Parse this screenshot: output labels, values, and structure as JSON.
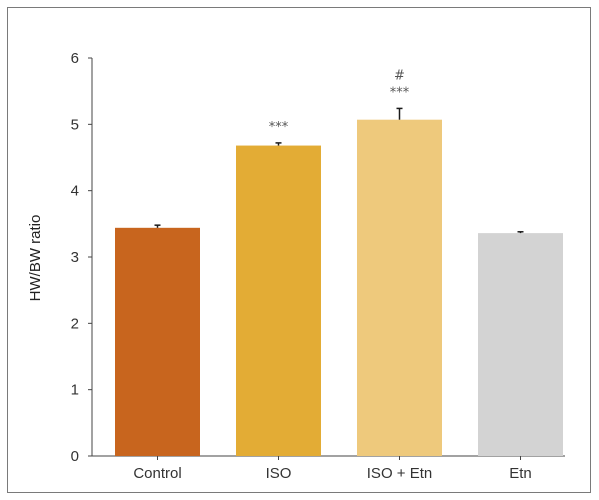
{
  "chart_data": {
    "type": "bar",
    "title": "",
    "xlabel": "",
    "ylabel": "HW/BW ratio",
    "ylim": [
      0,
      6
    ],
    "yticks": [
      0,
      1,
      2,
      3,
      4,
      5,
      6
    ],
    "grid": false,
    "legend": "none",
    "categories": [
      "Control",
      "ISO",
      "ISO + Etn",
      "Etn"
    ],
    "values": [
      3.44,
      4.68,
      5.07,
      3.36
    ],
    "errors": [
      0.04,
      0.04,
      0.17,
      0.02
    ],
    "colors": [
      "#C8651E",
      "#E3AC35",
      "#EEC97C",
      "#D3D3D3"
    ],
    "annotations": [
      {
        "category": "ISO",
        "lines": [
          "***"
        ]
      },
      {
        "category": "ISO + Etn",
        "lines": [
          "#",
          "***"
        ]
      }
    ]
  }
}
